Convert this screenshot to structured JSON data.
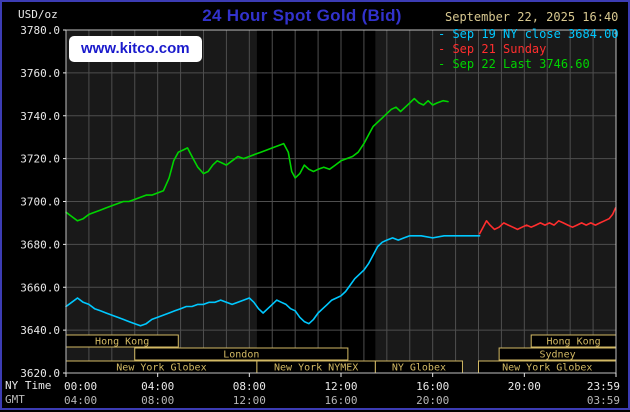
{
  "header": {
    "unit_label": "USD/oz",
    "title": "24 Hour Spot Gold (Bid)",
    "timestamp": "September 22, 2025 16:40",
    "watermark": "www.kitco.com"
  },
  "axis": {
    "ny_label": "NY Time",
    "gmt_label": "GMT"
  },
  "legend": [
    {
      "label": "Sep 19 NY close 3684.00",
      "color": "#00c8ff"
    },
    {
      "label": "Sep 21 Sunday",
      "color": "#ff2e2e"
    },
    {
      "label": "Sep 22 Last 3746.60",
      "color": "#00d400"
    }
  ],
  "chart_data": {
    "type": "line",
    "title": "24 Hour Spot Gold (Bid)",
    "ylabel": "USD/oz",
    "ylim": [
      3620,
      3780
    ],
    "yticks": [
      3780,
      3760,
      3740,
      3720,
      3700,
      3680,
      3660,
      3640,
      3620
    ],
    "ytick_labels": [
      "3780.0",
      "3760.0",
      "3740.0",
      "3720.0",
      "3700.0",
      "3680.0",
      "3660.0",
      "3640.0",
      "3620.0"
    ],
    "xlim_hours": [
      0,
      24
    ],
    "grid_hours_step": 1,
    "plot_bg": "#191919",
    "band_bg": "#000000",
    "grid_color": "#4e4e4e",
    "border_color": "#c0c0c0",
    "session_color": "#d2b964",
    "tick_text_color": "#e8e8e8",
    "gmt_text_color": "#b8b8b8",
    "nymex_band_hours": [
      8.33,
      13.5
    ],
    "ny_ticks": [
      {
        "h": 0,
        "label": "00:00"
      },
      {
        "h": 4,
        "label": "04:00"
      },
      {
        "h": 8,
        "label": "08:00"
      },
      {
        "h": 12,
        "label": "12:00"
      },
      {
        "h": 16,
        "label": "16:00"
      },
      {
        "h": 20,
        "label": "20:00"
      },
      {
        "h": 24,
        "label": "23:59"
      }
    ],
    "gmt_ticks": [
      {
        "h": 0,
        "label": "04:00"
      },
      {
        "h": 4,
        "label": "08:00"
      },
      {
        "h": 8,
        "label": "12:00"
      },
      {
        "h": 12,
        "label": "16:00"
      },
      {
        "h": 16,
        "label": "20:00"
      },
      {
        "h": 24,
        "label": "03:59"
      }
    ],
    "sessions": [
      {
        "row": 0,
        "label": "Hong Kong",
        "start": 0,
        "end": 4.9
      },
      {
        "row": 0,
        "label": "Hong Kong",
        "start": 20.3,
        "end": 24
      },
      {
        "row": 1,
        "label": "London",
        "start": 3,
        "end": 12.3
      },
      {
        "row": 1,
        "label": "Sydney",
        "start": 18.9,
        "end": 24
      },
      {
        "row": 2,
        "label": "New York Globex",
        "start": 0,
        "end": 8.33
      },
      {
        "row": 2,
        "label": "New York NYMEX",
        "start": 8.33,
        "end": 13.5
      },
      {
        "row": 2,
        "label": "NY Globex",
        "start": 13.5,
        "end": 17.3
      },
      {
        "row": 2,
        "label": "New York Globex",
        "start": 18,
        "end": 24
      }
    ],
    "series": [
      {
        "name": "sep19-ny-close",
        "legend": "Sep 19 NY close 3684.00",
        "color": "#00c8ff",
        "close_value": 3684.0,
        "points": [
          [
            0,
            3651
          ],
          [
            0.25,
            3653
          ],
          [
            0.5,
            3655
          ],
          [
            0.75,
            3653
          ],
          [
            1,
            3652
          ],
          [
            1.25,
            3650
          ],
          [
            1.5,
            3649
          ],
          [
            1.75,
            3648
          ],
          [
            2,
            3647
          ],
          [
            2.25,
            3646
          ],
          [
            2.5,
            3645
          ],
          [
            2.75,
            3644
          ],
          [
            3,
            3643
          ],
          [
            3.25,
            3642
          ],
          [
            3.5,
            3643
          ],
          [
            3.75,
            3645
          ],
          [
            4,
            3646
          ],
          [
            4.25,
            3647
          ],
          [
            4.5,
            3648
          ],
          [
            4.75,
            3649
          ],
          [
            5,
            3650
          ],
          [
            5.25,
            3651
          ],
          [
            5.5,
            3651
          ],
          [
            5.75,
            3652
          ],
          [
            6,
            3652
          ],
          [
            6.25,
            3653
          ],
          [
            6.5,
            3653
          ],
          [
            6.75,
            3654
          ],
          [
            7,
            3653
          ],
          [
            7.25,
            3652
          ],
          [
            7.5,
            3653
          ],
          [
            7.75,
            3654
          ],
          [
            8,
            3655
          ],
          [
            8.2,
            3653
          ],
          [
            8.4,
            3650
          ],
          [
            8.6,
            3648
          ],
          [
            8.8,
            3650
          ],
          [
            9,
            3652
          ],
          [
            9.2,
            3654
          ],
          [
            9.4,
            3653
          ],
          [
            9.6,
            3652
          ],
          [
            9.8,
            3650
          ],
          [
            10,
            3649
          ],
          [
            10.2,
            3646
          ],
          [
            10.4,
            3644
          ],
          [
            10.6,
            3643
          ],
          [
            10.8,
            3645
          ],
          [
            11,
            3648
          ],
          [
            11.2,
            3650
          ],
          [
            11.4,
            3652
          ],
          [
            11.6,
            3654
          ],
          [
            11.8,
            3655
          ],
          [
            12,
            3656
          ],
          [
            12.2,
            3658
          ],
          [
            12.4,
            3661
          ],
          [
            12.6,
            3664
          ],
          [
            12.8,
            3666
          ],
          [
            13,
            3668
          ],
          [
            13.2,
            3671
          ],
          [
            13.4,
            3675
          ],
          [
            13.6,
            3679
          ],
          [
            13.8,
            3681
          ],
          [
            14,
            3682
          ],
          [
            14.25,
            3683
          ],
          [
            14.5,
            3682
          ],
          [
            14.75,
            3683
          ],
          [
            15,
            3684
          ],
          [
            15.5,
            3684
          ],
          [
            16,
            3683
          ],
          [
            16.5,
            3684
          ],
          [
            17,
            3684
          ],
          [
            17.5,
            3684
          ],
          [
            18.05,
            3684
          ]
        ]
      },
      {
        "name": "sep21-sunday",
        "legend": "Sep 21 Sunday",
        "color": "#ff2e2e",
        "points": [
          [
            18.05,
            3685
          ],
          [
            18.2,
            3688
          ],
          [
            18.35,
            3691
          ],
          [
            18.5,
            3689
          ],
          [
            18.7,
            3687
          ],
          [
            18.9,
            3688
          ],
          [
            19.1,
            3690
          ],
          [
            19.3,
            3689
          ],
          [
            19.5,
            3688
          ],
          [
            19.7,
            3687
          ],
          [
            19.9,
            3688
          ],
          [
            20.1,
            3689
          ],
          [
            20.3,
            3688
          ],
          [
            20.5,
            3689
          ],
          [
            20.7,
            3690
          ],
          [
            20.9,
            3689
          ],
          [
            21.1,
            3690
          ],
          [
            21.3,
            3689
          ],
          [
            21.5,
            3691
          ],
          [
            21.7,
            3690
          ],
          [
            21.9,
            3689
          ],
          [
            22.1,
            3688
          ],
          [
            22.3,
            3689
          ],
          [
            22.5,
            3690
          ],
          [
            22.7,
            3689
          ],
          [
            22.9,
            3690
          ],
          [
            23.1,
            3689
          ],
          [
            23.3,
            3690
          ],
          [
            23.5,
            3691
          ],
          [
            23.7,
            3692
          ],
          [
            23.85,
            3694
          ],
          [
            23.98,
            3697
          ]
        ]
      },
      {
        "name": "sep22-last",
        "legend": "Sep 22 Last 3746.60",
        "color": "#00d400",
        "last_value": 3746.6,
        "points": [
          [
            0,
            3695
          ],
          [
            0.25,
            3693
          ],
          [
            0.5,
            3691
          ],
          [
            0.75,
            3692
          ],
          [
            1,
            3694
          ],
          [
            1.25,
            3695
          ],
          [
            1.5,
            3696
          ],
          [
            1.75,
            3697
          ],
          [
            2,
            3698
          ],
          [
            2.25,
            3699
          ],
          [
            2.5,
            3700
          ],
          [
            2.75,
            3700
          ],
          [
            3,
            3701
          ],
          [
            3.25,
            3702
          ],
          [
            3.5,
            3703
          ],
          [
            3.75,
            3703
          ],
          [
            4,
            3704
          ],
          [
            4.25,
            3705
          ],
          [
            4.5,
            3711
          ],
          [
            4.7,
            3719
          ],
          [
            4.9,
            3723
          ],
          [
            5.1,
            3724
          ],
          [
            5.3,
            3725
          ],
          [
            5.5,
            3721
          ],
          [
            5.75,
            3716
          ],
          [
            6,
            3713
          ],
          [
            6.2,
            3714
          ],
          [
            6.4,
            3717
          ],
          [
            6.6,
            3719
          ],
          [
            6.8,
            3718
          ],
          [
            7,
            3717
          ],
          [
            7.25,
            3719
          ],
          [
            7.5,
            3721
          ],
          [
            7.75,
            3720
          ],
          [
            8,
            3721
          ],
          [
            8.25,
            3722
          ],
          [
            8.5,
            3723
          ],
          [
            8.75,
            3724
          ],
          [
            9,
            3725
          ],
          [
            9.25,
            3726
          ],
          [
            9.5,
            3727
          ],
          [
            9.7,
            3723
          ],
          [
            9.85,
            3714
          ],
          [
            10,
            3711
          ],
          [
            10.2,
            3713
          ],
          [
            10.4,
            3717
          ],
          [
            10.6,
            3715
          ],
          [
            10.8,
            3714
          ],
          [
            11,
            3715
          ],
          [
            11.25,
            3716
          ],
          [
            11.5,
            3715
          ],
          [
            11.75,
            3717
          ],
          [
            12,
            3719
          ],
          [
            12.25,
            3720
          ],
          [
            12.5,
            3721
          ],
          [
            12.75,
            3723
          ],
          [
            13,
            3727
          ],
          [
            13.2,
            3731
          ],
          [
            13.4,
            3735
          ],
          [
            13.6,
            3737
          ],
          [
            13.8,
            3739
          ],
          [
            14,
            3741
          ],
          [
            14.2,
            3743
          ],
          [
            14.4,
            3744
          ],
          [
            14.6,
            3742
          ],
          [
            14.8,
            3744
          ],
          [
            15,
            3746
          ],
          [
            15.2,
            3748
          ],
          [
            15.4,
            3746
          ],
          [
            15.6,
            3745
          ],
          [
            15.8,
            3747
          ],
          [
            16,
            3745
          ],
          [
            16.2,
            3746
          ],
          [
            16.45,
            3747
          ],
          [
            16.67,
            3746.6
          ]
        ]
      }
    ]
  }
}
